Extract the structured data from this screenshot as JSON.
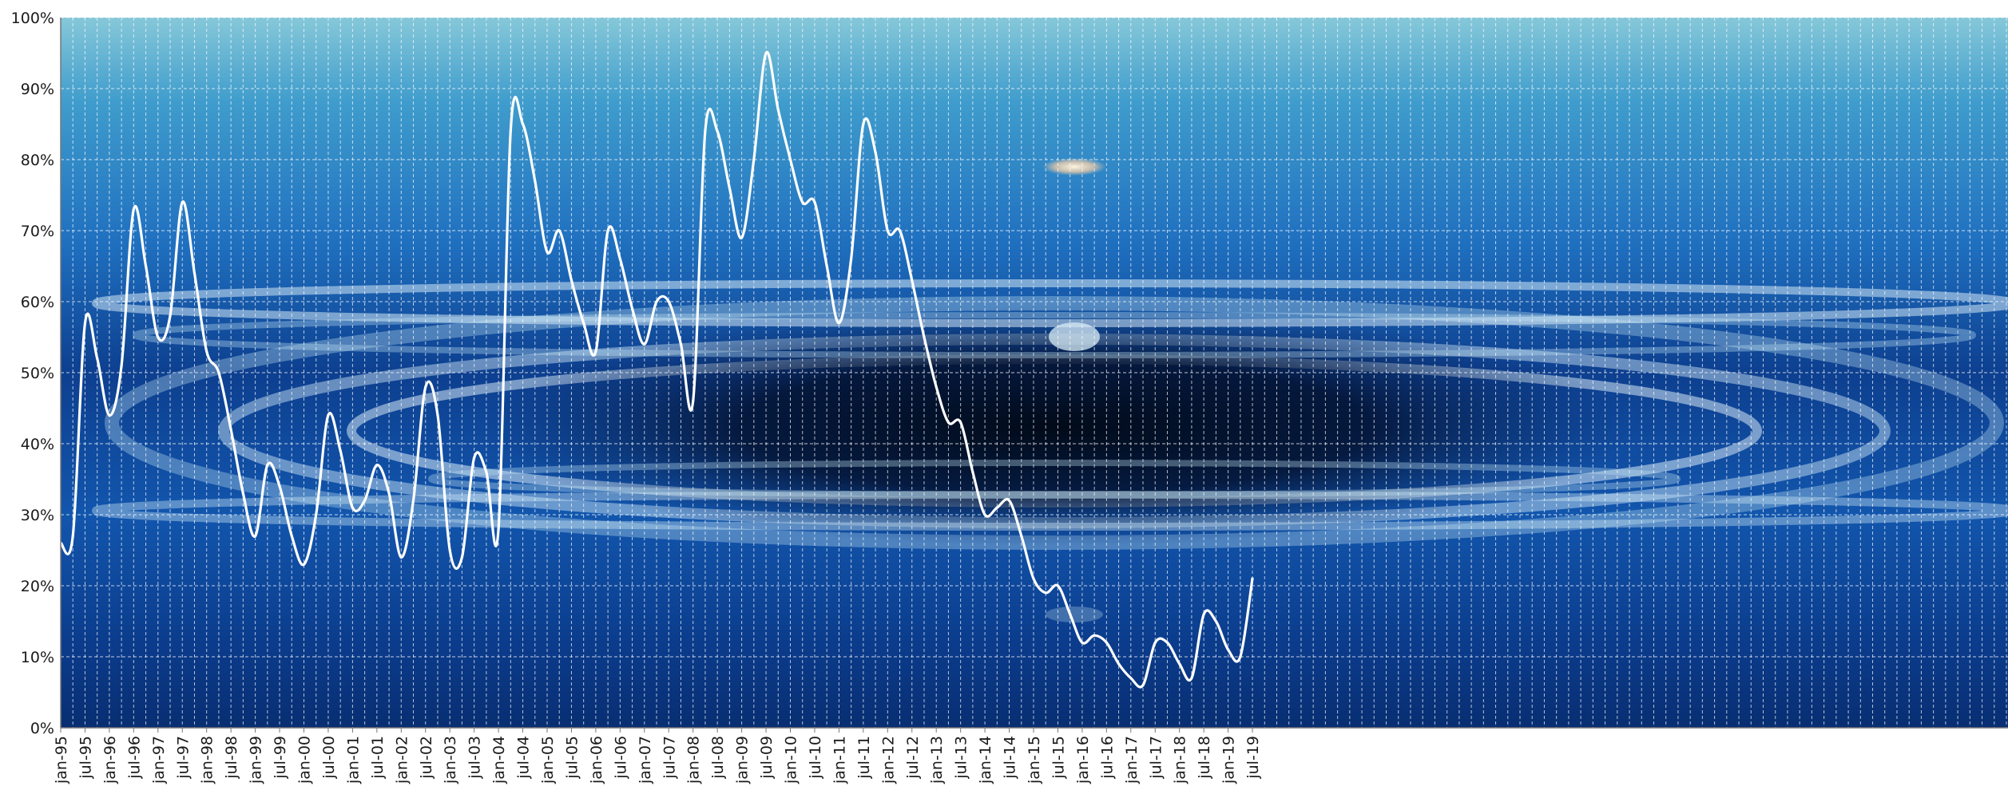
{
  "chart_data": {
    "type": "line",
    "title": "",
    "xlabel": "",
    "ylabel": "",
    "ylim": [
      0,
      100
    ],
    "yticks": [
      "0%",
      "10%",
      "20%",
      "30%",
      "40%",
      "50%",
      "60%",
      "70%",
      "80%",
      "90%",
      "100%"
    ],
    "xtick_labels": [
      "jan-95",
      "jul-95",
      "jan-96",
      "jul-96",
      "jan-97",
      "jul-97",
      "jan-98",
      "jul-98",
      "jan-99",
      "jul-99",
      "jan-00",
      "jul-00",
      "jan-01",
      "jul-01",
      "jan-02",
      "jul-02",
      "jan-03",
      "jul-03",
      "jan-04",
      "jul-04",
      "jan-05",
      "jul-05",
      "jan-06",
      "jul-06",
      "jan-07",
      "jul-07",
      "jan-08",
      "jul-08",
      "jan-09",
      "jul-09",
      "jan-10",
      "jul-10",
      "jan-11",
      "jul-11",
      "jan-12",
      "jul-12",
      "jan-13",
      "jul-13",
      "jan-14",
      "jul-14",
      "jan-15",
      "jul-15",
      "jan-16",
      "jul-16",
      "jan-17",
      "jul-17",
      "jan-18",
      "jul-18",
      "jan-19",
      "jul-19"
    ],
    "grid": true,
    "legend": "none",
    "colors": {
      "line": "#ffffff",
      "grid": "#ffffff",
      "bg_top": "#7cc3d6",
      "bg_mid": "#1a66b3",
      "bg_dark": "#030a26",
      "bg_bottom": "#0a2f7a"
    },
    "series": [
      {
        "x": [
          "jan-95",
          "apr-95",
          "jul-95",
          "oct-95",
          "jan-96",
          "apr-96",
          "jul-96",
          "oct-96",
          "jan-97",
          "apr-97",
          "jul-97",
          "oct-97",
          "jan-98",
          "apr-98",
          "jul-98",
          "oct-98",
          "jan-99",
          "apr-99",
          "jul-99",
          "oct-99",
          "jan-00",
          "apr-00",
          "jul-00",
          "oct-00",
          "jan-01",
          "apr-01",
          "jul-01",
          "oct-01",
          "jan-02",
          "apr-02",
          "jul-02",
          "oct-02",
          "jan-03",
          "apr-03",
          "jul-03",
          "oct-03",
          "jan-04",
          "apr-04",
          "jul-04",
          "oct-04",
          "jan-05",
          "apr-05",
          "jul-05",
          "oct-05",
          "jan-06",
          "apr-06",
          "jul-06",
          "oct-06",
          "jan-07",
          "apr-07",
          "jul-07",
          "oct-07",
          "jan-08",
          "apr-08",
          "jul-08",
          "oct-08",
          "jan-09",
          "apr-09",
          "jul-09",
          "oct-09",
          "jan-10",
          "apr-10",
          "jul-10",
          "oct-10",
          "jan-11",
          "apr-11",
          "jul-11",
          "oct-11",
          "jan-12",
          "apr-12",
          "jul-12",
          "oct-12",
          "jan-13",
          "apr-13",
          "jul-13",
          "oct-13",
          "jan-14",
          "apr-14",
          "jul-14",
          "oct-14",
          "jan-15",
          "apr-15",
          "jul-15",
          "oct-15",
          "jan-16",
          "apr-16",
          "jul-16",
          "oct-16",
          "jan-17",
          "apr-17",
          "jul-17",
          "oct-17",
          "jan-18",
          "apr-18",
          "jul-18",
          "oct-18",
          "jan-19",
          "apr-19",
          "jul-19"
        ],
        "y": [
          26,
          27,
          57,
          52,
          44,
          51,
          73,
          65,
          55,
          58,
          74,
          64,
          53,
          50,
          42,
          33,
          27,
          37,
          34,
          27,
          23,
          30,
          44,
          39,
          31,
          32,
          37,
          33,
          24,
          32,
          48,
          44,
          25,
          24,
          38,
          36,
          28,
          84,
          85,
          77,
          67,
          70,
          63,
          57,
          53,
          70,
          66,
          59,
          54,
          60,
          60,
          54,
          46,
          84,
          84,
          76,
          69,
          80,
          95,
          87,
          80,
          74,
          74,
          65,
          57,
          66,
          85,
          81,
          70,
          70,
          63,
          55,
          48,
          43,
          43,
          36,
          30,
          31,
          32,
          27,
          21,
          19,
          20,
          16,
          12,
          13,
          12,
          9,
          7,
          6,
          12,
          12,
          9,
          7,
          16,
          15,
          11,
          10,
          21
        ]
      }
    ]
  }
}
